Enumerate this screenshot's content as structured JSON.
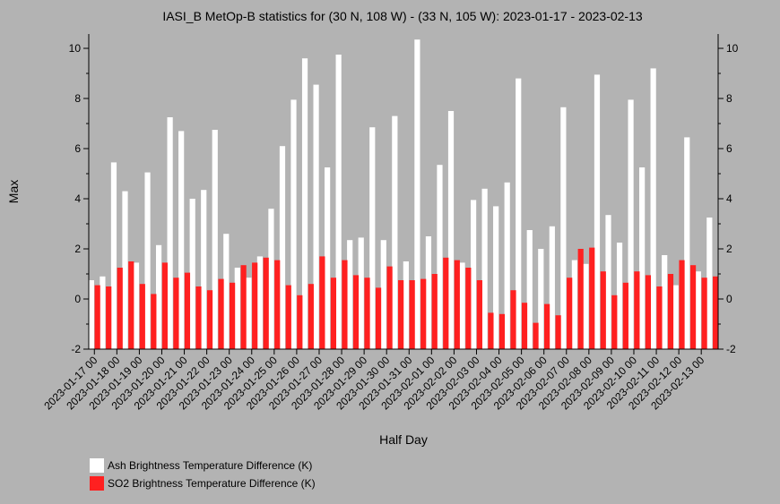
{
  "chart_data": {
    "type": "bar",
    "title": "IASI_B MetOp-B statistics for (30 N, 108 W) - (33 N, 105 W): 2023-01-17 - 2023-02-13",
    "xlabel": "Half Day",
    "ylabel": "Max",
    "ylim": [
      -2,
      10.5
    ],
    "yticks": [
      -2,
      0,
      2,
      4,
      6,
      8,
      10
    ],
    "ytick_labels": [
      "-2",
      "0",
      "2",
      "4",
      "6",
      "8",
      "10"
    ],
    "grid": false,
    "legend_position": "bottom-left",
    "xtick_labels": [
      "2023-01-17 00",
      "2023-01-18 00",
      "2023-01-19 00",
      "2023-01-20 00",
      "2023-01-21 00",
      "2023-01-22 00",
      "2023-01-23 00",
      "2023-01-24 00",
      "2023-01-25 00",
      "2023-01-26 00",
      "2023-01-27 00",
      "2023-01-28 00",
      "2023-01-29 00",
      "2023-01-30 00",
      "2023-01-31 00",
      "2023-02-01 00",
      "2023-02-02 00",
      "2023-02-03 00",
      "2023-02-04 00",
      "2023-02-05 00",
      "2023-02-06 00",
      "2023-02-07 00",
      "2023-02-08 00",
      "2023-02-09 00",
      "2023-02-10 00",
      "2023-02-11 00",
      "2023-02-12 00",
      "2023-02-13 00"
    ],
    "series": [
      {
        "name": "Ash Brightness Temperature Difference (K)",
        "color": "#ffffff",
        "values": [
          0.75,
          0.9,
          5.45,
          4.3,
          1.45,
          5.05,
          2.15,
          7.25,
          6.7,
          4.0,
          4.35,
          6.75,
          2.6,
          1.25,
          0.85,
          1.7,
          3.6,
          6.1,
          7.95,
          9.6,
          8.55,
          5.25,
          9.75,
          2.35,
          2.45,
          6.85,
          2.35,
          7.3,
          1.5,
          10.35,
          2.5,
          5.35,
          7.5,
          1.45,
          3.95,
          4.4,
          3.7,
          4.65,
          8.8,
          2.75,
          2.0,
          2.9,
          7.65,
          1.55,
          1.4,
          8.95,
          3.35,
          2.25,
          7.95,
          5.25,
          9.2,
          1.75,
          0.55,
          6.45,
          1.1,
          3.25
        ]
      },
      {
        "name": "SO2 Brightness Temperature Difference (K)",
        "color": "#ff2020",
        "values": [
          0.55,
          0.5,
          1.25,
          1.5,
          0.6,
          0.2,
          1.45,
          0.85,
          1.05,
          0.5,
          0.35,
          0.8,
          0.65,
          1.35,
          1.45,
          1.65,
          1.55,
          0.55,
          0.15,
          0.6,
          1.7,
          0.85,
          1.55,
          0.95,
          0.85,
          0.45,
          1.3,
          0.75,
          0.75,
          0.8,
          1.0,
          1.65,
          1.55,
          1.25,
          0.75,
          -0.55,
          -0.6,
          0.35,
          -0.15,
          -0.95,
          -0.2,
          -0.65,
          0.85,
          2.0,
          2.05,
          1.1,
          0.15,
          0.65,
          1.1,
          0.95,
          0.5,
          1.0,
          1.55,
          1.35,
          0.85,
          0.9
        ]
      }
    ]
  }
}
